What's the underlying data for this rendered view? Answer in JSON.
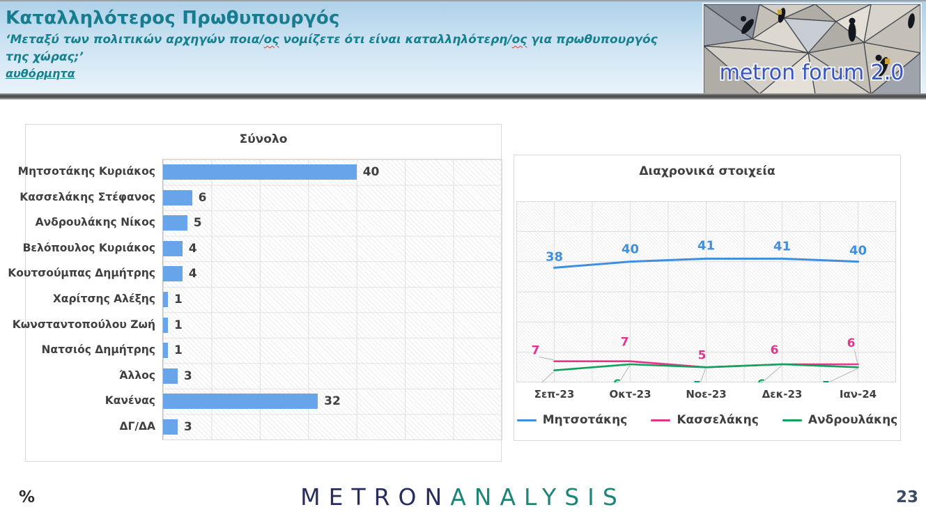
{
  "header": {
    "title": "Καταλληλότερος Πρωθυπουργός",
    "subtitle_segments": [
      {
        "t": "‘Μεταξύ των πολιτικών αρχηγών ποια/",
        "wavy": false
      },
      {
        "t": "ος",
        "wavy": true
      },
      {
        "t": " νομίζετε ότι είναι καταλληλότερη/",
        "wavy": false
      },
      {
        "t": "ος",
        "wavy": true
      },
      {
        "t": " για πρωθυπουργός",
        "wavy": false
      },
      {
        "br": true
      },
      {
        "t": "της χώρας;’",
        "wavy": false
      }
    ],
    "note": "αυθόρμητα",
    "logo_text": "metron forum 2.0"
  },
  "footer": {
    "percent_label": "%",
    "brand_part1": "METRON",
    "brand_part2": "ANALYSIS",
    "page_number": "23"
  },
  "colors": {
    "title_teal": "#177d8e",
    "bar_blue": "#68a4e9",
    "line_blue": "#3f8fde",
    "line_pink": "#e6338c",
    "line_green": "#10a25a",
    "chart_text": "#404040",
    "brand_navy": "#272e5d",
    "brand_teal": "#1b8577"
  },
  "chart_data": [
    {
      "type": "bar",
      "orientation": "horizontal",
      "title": "Σύνολο",
      "categories": [
        "Μητσοτάκης Κυριάκος",
        "Κασσελάκης Στέφανος",
        "Ανδρουλάκης Νίκος",
        "Βελόπουλος Κυριάκος",
        "Κουτσούμπας Δημήτρης",
        "Χαρίτσης Αλέξης",
        "Κωνσταντοπούλου Ζωή",
        "Νατσιός Δημήτρης",
        "Άλλος",
        "Κανένας",
        "ΔΓ/ΔΑ"
      ],
      "values": [
        40,
        6,
        5,
        4,
        4,
        1,
        1,
        1,
        3,
        32,
        3
      ],
      "xlim": [
        0,
        70
      ],
      "gridline_interval": 10,
      "grid": true,
      "bar_color": "#68a4e9",
      "unit": "%"
    },
    {
      "type": "line",
      "title": "Διαχρονικά στοιχεία",
      "categories": [
        "Σεπ-23",
        "Οκτ-23",
        "Νοε-23",
        "Δεκ-23",
        "Ιαν-24"
      ],
      "series": [
        {
          "name": "Μητσοτάκης",
          "color": "#3f8fde",
          "values": [
            38,
            40,
            41,
            41,
            40
          ]
        },
        {
          "name": "Κασσελάκης",
          "color": "#e6338c",
          "values": [
            7,
            7,
            5,
            6,
            6
          ]
        },
        {
          "name": "Ανδρουλάκης",
          "color": "#10a25a",
          "values": [
            4,
            6,
            5,
            6,
            5
          ]
        }
      ],
      "ylim": [
        0,
        60
      ],
      "grid": true,
      "legend_position": "bottom",
      "unit": "%"
    }
  ]
}
